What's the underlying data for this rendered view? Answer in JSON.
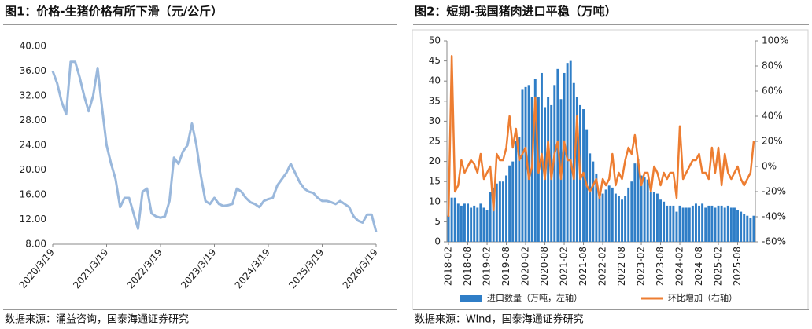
{
  "chart_data": [
    {
      "type": "line",
      "title": "图1：价格-生猪价格有所下滑（元/公斤）",
      "source": "数据来源：涌益咨询，国泰海通证券研究",
      "color": "#9ab8dc",
      "categories": [
        "2020/3/19",
        null,
        null,
        null,
        null,
        null,
        null,
        null,
        null,
        null,
        null,
        null,
        "2021/3/19",
        null,
        null,
        null,
        null,
        null,
        null,
        null,
        null,
        null,
        null,
        null,
        "2022/3/19",
        null,
        null,
        null,
        null,
        null,
        null,
        null,
        null,
        null,
        null,
        null,
        "2023/3/19",
        null,
        null,
        null,
        null,
        null,
        null,
        null,
        null,
        null,
        null,
        null,
        "2024/3/19",
        null,
        null,
        null,
        null,
        null,
        null,
        null,
        null,
        null,
        null,
        null,
        "2025/3/19",
        null,
        null,
        null,
        null,
        null,
        null,
        null,
        null,
        null,
        null,
        null,
        "2026/3/19"
      ],
      "values": [
        36,
        34,
        31,
        29,
        37.5,
        37.5,
        35,
        32,
        29.5,
        32,
        36.5,
        30,
        24,
        21,
        18.5,
        14,
        15.5,
        15.5,
        13,
        10.5,
        16.5,
        17,
        13,
        12.5,
        12.3,
        12.5,
        15,
        22,
        21,
        23,
        24,
        27.5,
        24,
        19,
        15,
        14.5,
        15.5,
        14.5,
        14.2,
        14.3,
        14.5,
        17,
        16.5,
        15.5,
        14.8,
        14.5,
        14,
        15,
        15.3,
        15.5,
        17.5,
        18.5,
        19.5,
        21,
        19.5,
        18,
        17,
        16.5,
        16.3,
        15.5,
        15,
        15,
        14.8,
        14.5,
        15,
        14.5,
        14,
        12.5,
        11.8,
        11.5,
        12.8,
        12.8,
        10
      ],
      "ylim": [
        8,
        40
      ],
      "yticks": [
        {
          "value": 8,
          "label": "8.00"
        },
        {
          "value": 12,
          "label": "12.00"
        },
        {
          "value": 16,
          "label": "16.00"
        },
        {
          "value": 20,
          "label": "20.00"
        },
        {
          "value": 24,
          "label": "24.00"
        },
        {
          "value": 28,
          "label": "28.00"
        },
        {
          "value": 32,
          "label": "32.00"
        },
        {
          "value": 36,
          "label": "36.00"
        },
        {
          "value": 40,
          "label": "40.00"
        }
      ]
    },
    {
      "type": "combo",
      "title": "图2：短期-我国猪肉进口平稳（万吨）",
      "source": "数据来源：Wind，国泰海通证券研究",
      "categories": [
        "2018-02",
        null,
        null,
        null,
        null,
        null,
        "2018-08",
        null,
        null,
        null,
        null,
        null,
        "2019-02",
        null,
        null,
        null,
        null,
        null,
        "2019-08",
        null,
        null,
        null,
        null,
        null,
        "2020-02",
        null,
        null,
        null,
        null,
        null,
        "2020-08",
        null,
        null,
        null,
        null,
        null,
        "2021-02",
        null,
        null,
        null,
        null,
        null,
        "2021-08",
        null,
        null,
        null,
        null,
        null,
        "2022-02",
        null,
        null,
        null,
        null,
        null,
        "2022-08",
        null,
        null,
        null,
        null,
        null,
        "2023-02",
        null,
        null,
        null,
        null,
        null,
        "2023-08",
        null,
        null,
        null,
        null,
        null,
        "2024-02",
        null,
        null,
        null,
        null,
        null,
        "2024-08",
        null,
        null,
        null,
        null,
        null,
        "2025-02",
        null,
        null,
        null,
        null,
        null,
        "2025-08",
        null,
        null,
        null,
        null,
        null
      ],
      "series": [
        {
          "name": "进口数量（万吨，左轴）",
          "type": "bar",
          "color": "#2f7ec7",
          "values": [
            6.5,
            11,
            11,
            9.5,
            9,
            9.5,
            9.5,
            8.5,
            9,
            8.5,
            9.5,
            8.5,
            8,
            12.5,
            13.5,
            14.5,
            15,
            15,
            16.5,
            19,
            20,
            25,
            26,
            38,
            38.5,
            39,
            36,
            40.5,
            36,
            42,
            33.5,
            36,
            34,
            39,
            43,
            35.5,
            42,
            44.5,
            45,
            39.5,
            36,
            34,
            33,
            28,
            22,
            20,
            17,
            12,
            12,
            13,
            14,
            13.5,
            12,
            11.5,
            10.5,
            11.5,
            13.5,
            15,
            19.5,
            20.5,
            16.5,
            16,
            15.5,
            12.5,
            12.5,
            12,
            10.5,
            10,
            9,
            9,
            9,
            7.5,
            9,
            8.5,
            8.5,
            8.5,
            9,
            9.5,
            9,
            9.5,
            8.5,
            9,
            9,
            8.5,
            9,
            9,
            8.5,
            9,
            8.5,
            8.5,
            8,
            7.5,
            7,
            6.5,
            6,
            6.5
          ]
        },
        {
          "name": "环比增加（右轴）",
          "type": "line",
          "axis": "y2",
          "color": "#ed7d31",
          "values": [
            -40,
            88,
            -20,
            -15,
            5,
            -5,
            0,
            5,
            2,
            -5,
            10,
            -10,
            -5,
            0,
            -35,
            10,
            5,
            5,
            15,
            40,
            15,
            30,
            5,
            10,
            15,
            -10,
            0,
            55,
            -5,
            10,
            -10,
            20,
            -10,
            10,
            20,
            -10,
            20,
            5,
            5,
            -10,
            40,
            -10,
            -5,
            -15,
            -20,
            -15,
            -10,
            -25,
            -10,
            -15,
            -10,
            10,
            -15,
            -5,
            -10,
            5,
            15,
            10,
            25,
            5,
            -15,
            -5,
            -5,
            -20,
            0,
            -5,
            -15,
            -5,
            -10,
            -5,
            -5,
            -25,
            32,
            -10,
            -5,
            0,
            5,
            5,
            10,
            -5,
            -5,
            -10,
            15,
            -5,
            15,
            -15,
            10,
            -5,
            -10,
            -5,
            0,
            -10,
            -15,
            -10,
            -5,
            20
          ]
        }
      ],
      "ylim": [
        0,
        50
      ],
      "yticks": [
        0,
        5,
        10,
        15,
        20,
        25,
        30,
        35,
        40,
        45,
        50
      ],
      "y2lim": [
        -60,
        100
      ],
      "y2ticks": [
        {
          "value": -60,
          "label": "-60%"
        },
        {
          "value": -40,
          "label": "-40%"
        },
        {
          "value": -20,
          "label": "-20%"
        },
        {
          "value": 0,
          "label": "0%"
        },
        {
          "value": 20,
          "label": "20%"
        },
        {
          "value": 40,
          "label": "40%"
        },
        {
          "value": 60,
          "label": "60%"
        },
        {
          "value": 80,
          "label": "80%"
        },
        {
          "value": 100,
          "label": "100%"
        }
      ],
      "legend": "bottom"
    }
  ]
}
